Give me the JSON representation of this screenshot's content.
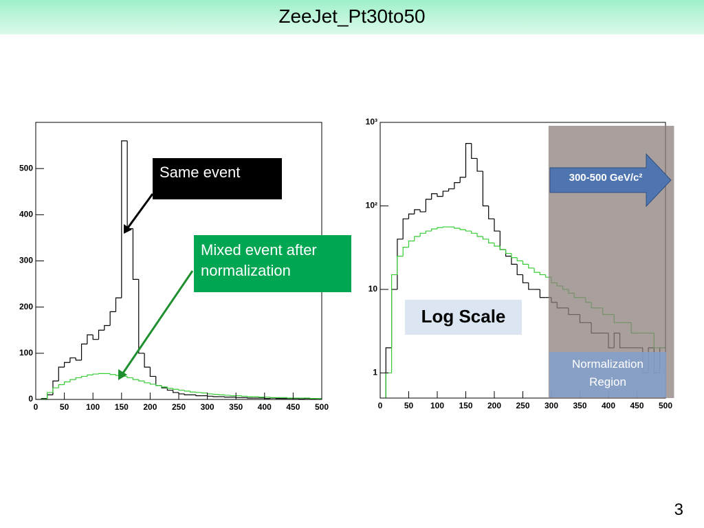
{
  "slide": {
    "title": "ZeeJet_Pt30to50",
    "page_number": "3"
  },
  "chart_data": [
    {
      "type": "histogram",
      "bins": [
        0,
        10,
        20,
        30,
        40,
        50,
        60,
        70,
        80,
        90,
        100,
        110,
        120,
        130,
        140,
        150,
        160,
        170,
        180,
        190,
        200,
        210,
        220,
        230,
        240,
        250,
        260,
        270,
        280,
        290,
        300,
        310,
        320,
        330,
        340,
        350,
        360,
        370,
        380,
        390,
        400,
        410,
        420,
        430,
        440,
        450,
        460,
        470,
        480,
        490,
        500
      ],
      "series": [
        {
          "name": "Same event",
          "color": "#000000",
          "values": [
            0,
            2,
            10,
            40,
            70,
            80,
            90,
            85,
            120,
            140,
            130,
            150,
            160,
            190,
            220,
            560,
            370,
            260,
            100,
            70,
            50,
            30,
            25,
            20,
            15,
            12,
            10,
            10,
            8,
            8,
            7,
            6,
            6,
            5,
            5,
            4,
            4,
            3,
            3,
            3,
            2,
            3,
            2,
            2,
            2,
            2,
            1,
            2,
            1,
            2
          ]
        },
        {
          "name": "Mixed event after normalization",
          "color": "#33cc33",
          "values": [
            0,
            1,
            15,
            25,
            32,
            38,
            43,
            47,
            50,
            53,
            55,
            56,
            56,
            54,
            52,
            50,
            47,
            43,
            40,
            36,
            33,
            30,
            27,
            24,
            22,
            20,
            18,
            16,
            15,
            14,
            12,
            11,
            10,
            9,
            8,
            8,
            7,
            6,
            6,
            5,
            5,
            4,
            4,
            4,
            3,
            3,
            3,
            3,
            2,
            2
          ]
        }
      ],
      "xlim": [
        0,
        500
      ],
      "xticks": [
        0,
        50,
        100,
        150,
        200,
        250,
        300,
        350,
        400,
        450,
        500
      ],
      "ylim": [
        0,
        600
      ],
      "yticks": [
        0,
        100,
        200,
        300,
        400,
        500
      ],
      "log_y": false,
      "annotations": [
        "Same event",
        "Mixed event after normalization"
      ]
    },
    {
      "type": "histogram",
      "bins": [
        0,
        10,
        20,
        30,
        40,
        50,
        60,
        70,
        80,
        90,
        100,
        110,
        120,
        130,
        140,
        150,
        160,
        170,
        180,
        190,
        200,
        210,
        220,
        230,
        240,
        250,
        260,
        270,
        280,
        290,
        300,
        310,
        320,
        330,
        340,
        350,
        360,
        370,
        380,
        390,
        400,
        410,
        420,
        430,
        440,
        450,
        460,
        470,
        480,
        490,
        500
      ],
      "series": [
        {
          "name": "Same event",
          "color": "#000000",
          "values": [
            0,
            2,
            10,
            40,
            70,
            80,
            90,
            85,
            120,
            140,
            130,
            150,
            160,
            190,
            220,
            560,
            370,
            260,
            100,
            70,
            50,
            30,
            25,
            20,
            15,
            12,
            10,
            10,
            8,
            8,
            7,
            6,
            6,
            5,
            5,
            4,
            4,
            3,
            3,
            3,
            2,
            3,
            2,
            2,
            2,
            2,
            1,
            2,
            1,
            2
          ]
        },
        {
          "name": "Mixed event after normalization",
          "color": "#33cc33",
          "values": [
            0,
            1,
            15,
            25,
            32,
            38,
            43,
            47,
            50,
            53,
            55,
            56,
            56,
            54,
            52,
            50,
            47,
            43,
            40,
            36,
            33,
            30,
            27,
            24,
            22,
            20,
            18,
            16,
            15,
            14,
            12,
            11,
            10,
            9,
            8,
            8,
            7,
            6,
            6,
            5,
            5,
            4,
            4,
            4,
            3,
            3,
            3,
            3,
            2,
            2
          ]
        }
      ],
      "xlim": [
        0,
        500
      ],
      "xticks": [
        0,
        50,
        100,
        150,
        200,
        250,
        300,
        350,
        400,
        450,
        500
      ],
      "ylim": [
        0.5,
        1000
      ],
      "yticks": [
        1,
        10,
        {
          "value": 100,
          "label": "10²"
        },
        {
          "value": 1000,
          "label": "10³"
        }
      ],
      "log_y": true,
      "highlight_range": [
        295,
        515
      ],
      "highlight_color": "#8c7f7c",
      "annotations": [
        "Log Scale",
        "300-500 GeV/c²",
        "Normalization Region"
      ]
    }
  ]
}
